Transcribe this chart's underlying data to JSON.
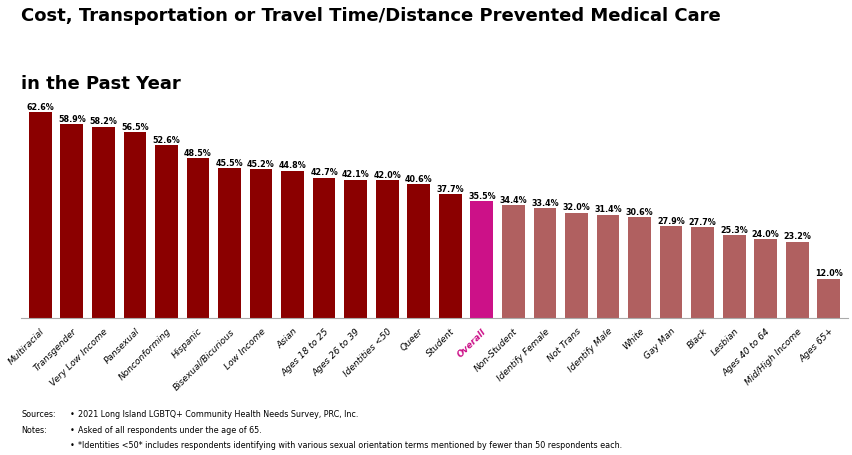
{
  "categories": [
    "Multiracial",
    "Transgender",
    "Very Low Income",
    "Pansexual",
    "Nonconforming",
    "Hispanic",
    "Bisexual/Bicurious",
    "Low Income",
    "Asian",
    "Ages 18 to 25",
    "Ages 26 to 39",
    "Identities <50",
    "Queer",
    "Student",
    "Overall",
    "Non-Student",
    "Identify Female",
    "Not Trans",
    "Identify Male",
    "White",
    "Gay Man",
    "Black",
    "Lesbian",
    "Ages 40 to 64",
    "Mid/High Income",
    "Ages 65+"
  ],
  "values": [
    62.6,
    58.9,
    58.2,
    56.5,
    52.6,
    48.5,
    45.5,
    45.2,
    44.8,
    42.7,
    42.1,
    42.0,
    40.6,
    37.7,
    35.5,
    34.4,
    33.4,
    32.0,
    31.4,
    30.6,
    27.9,
    27.7,
    25.3,
    24.0,
    23.2,
    12.0
  ],
  "bar_colors": [
    "#8B0000",
    "#8B0000",
    "#8B0000",
    "#8B0000",
    "#8B0000",
    "#8B0000",
    "#8B0000",
    "#8B0000",
    "#8B0000",
    "#8B0000",
    "#8B0000",
    "#8B0000",
    "#8B0000",
    "#8B0000",
    "#CC1188",
    "#B06060",
    "#B06060",
    "#B06060",
    "#B06060",
    "#B06060",
    "#B06060",
    "#B06060",
    "#B06060",
    "#B06060",
    "#B06060",
    "#B06060"
  ],
  "title_line1": "Cost, Transportation or Travel Time/Distance Prevented Medical Care",
  "title_line2": "in the Past Year",
  "overall_index": 14,
  "overall_label_color": "#CC1188",
  "background_color": "#ffffff",
  "ylim": [
    0,
    72
  ],
  "value_label_fontsize": 5.8,
  "xlabel_fontsize": 6.5,
  "title_fontsize": 13,
  "footer_fontsize": 5.8,
  "bar_width": 0.72
}
